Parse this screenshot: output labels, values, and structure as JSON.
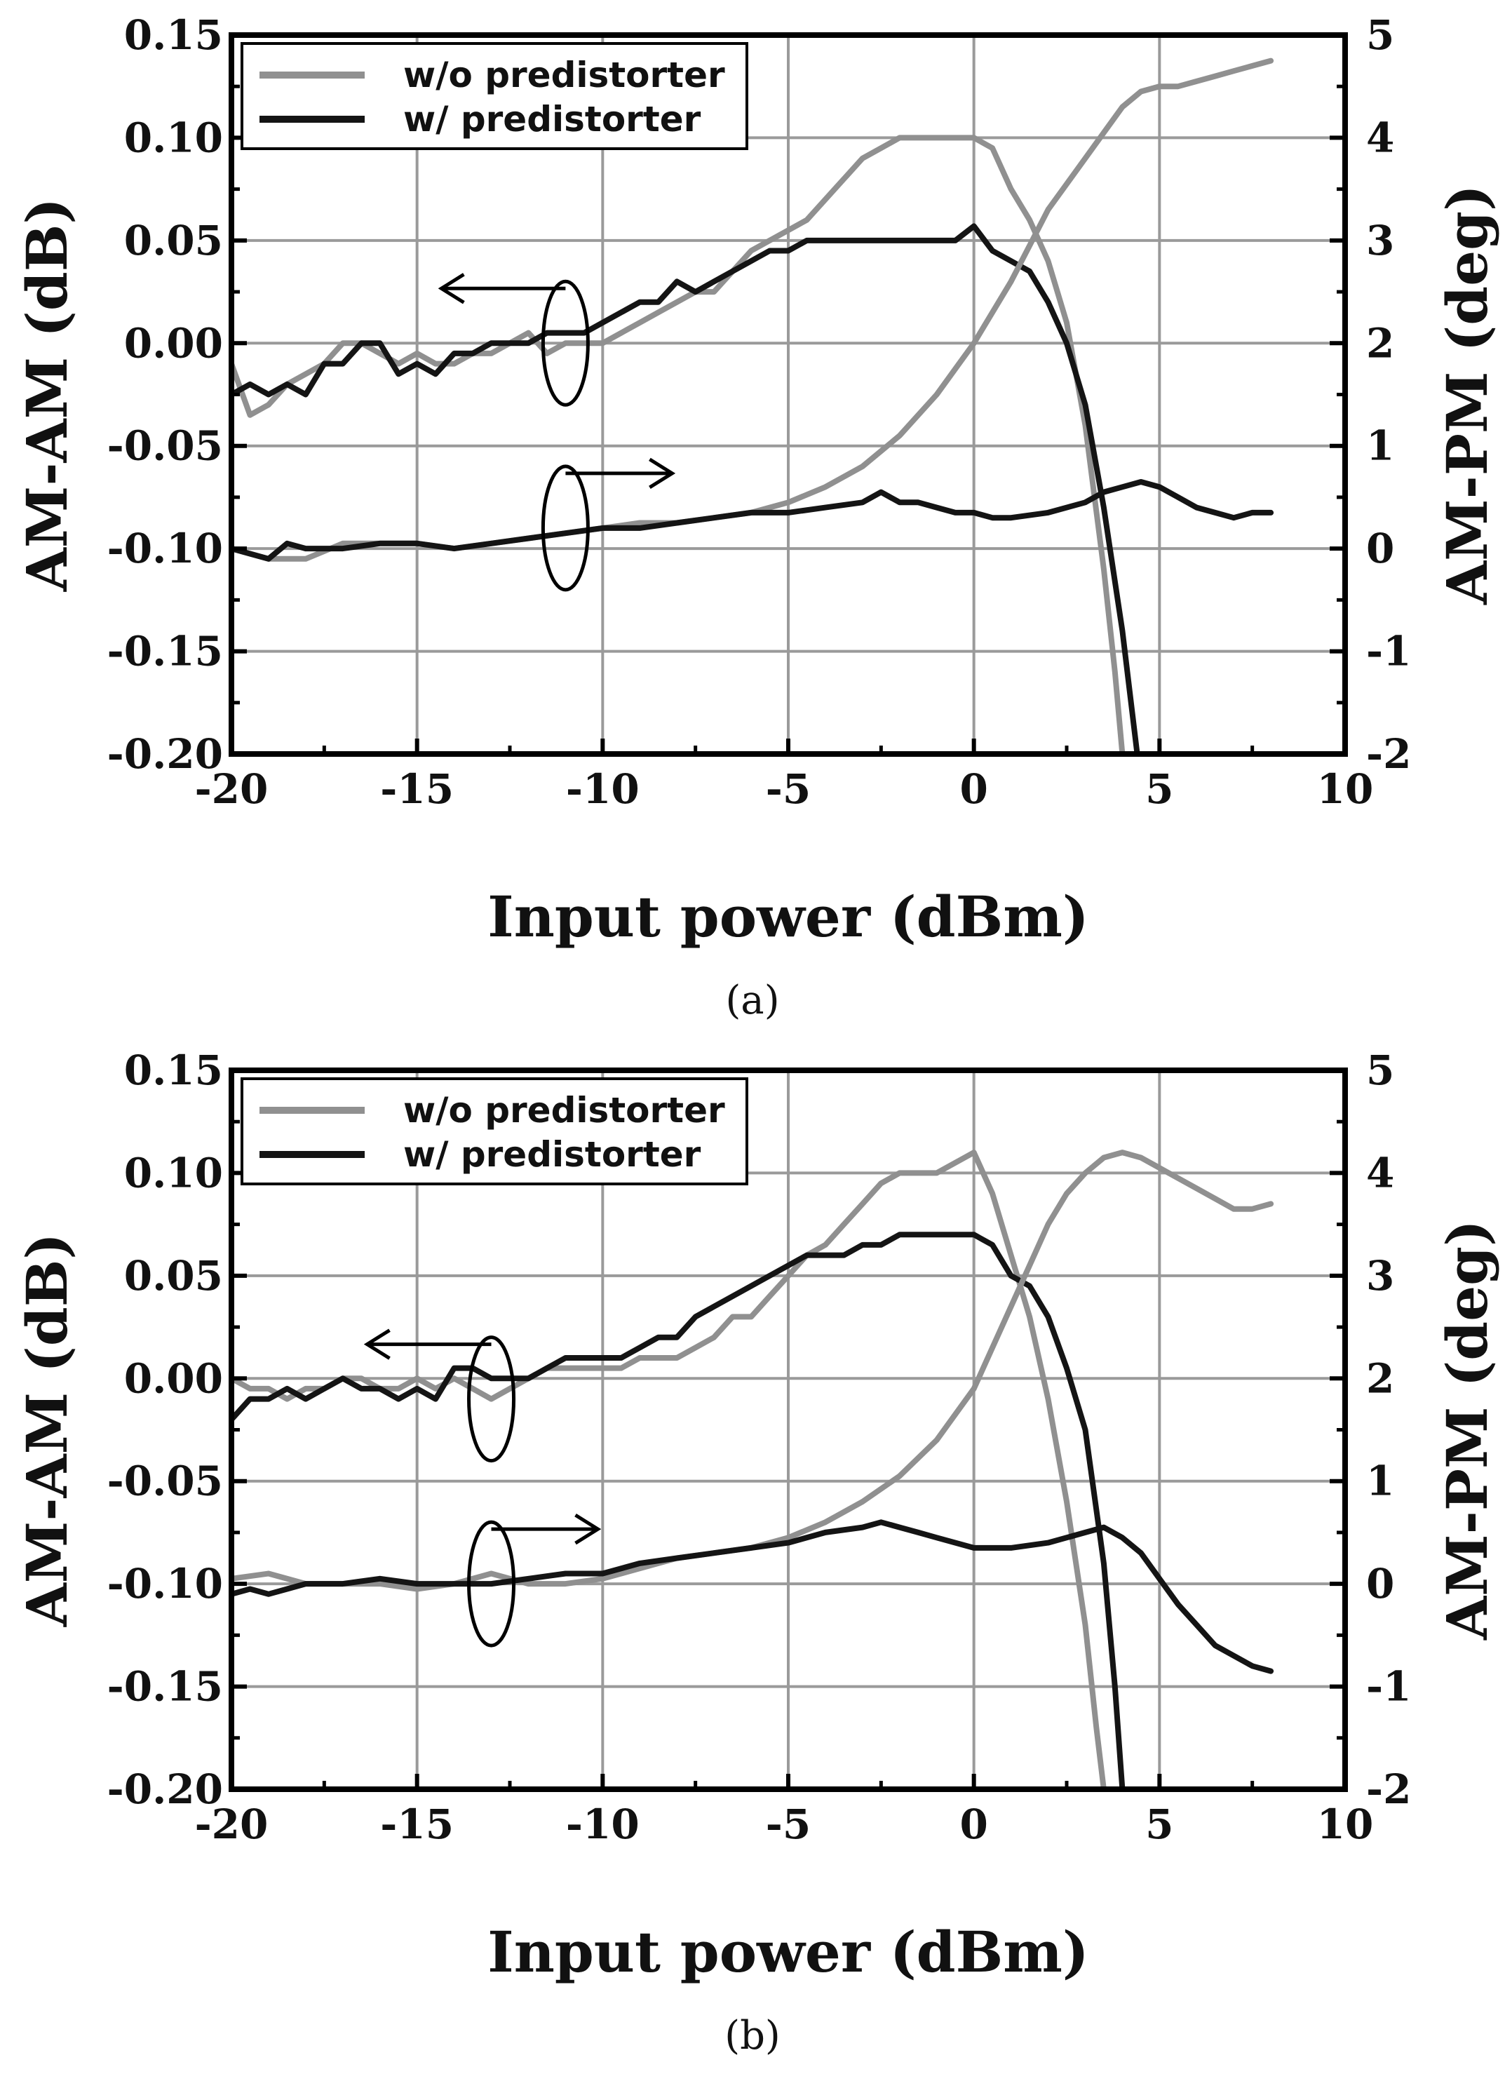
{
  "figure": {
    "captions": [
      "(a)",
      "(b)"
    ]
  },
  "colors": {
    "without": "#909090",
    "with": "#141414",
    "grid": "#9a9a9a",
    "axis": "#000000"
  },
  "chart_data": [
    {
      "type": "line",
      "panel_label": "(a)",
      "xlabel": "Input power (dBm)",
      "ylabel_left": "AM-AM (dB)",
      "ylabel_right": "AM-PM (deg)",
      "xlim": [
        -20,
        10
      ],
      "ylim_left": [
        -0.2,
        0.15
      ],
      "ylim_right": [
        -2,
        5
      ],
      "xticks": [
        -20,
        -15,
        -10,
        -5,
        0,
        5,
        10
      ],
      "xtick_labels": [
        "-20",
        "-15",
        "-10",
        "-5",
        "0",
        "5",
        "10"
      ],
      "yticks_left": [
        -0.2,
        -0.15,
        -0.1,
        -0.05,
        0.0,
        0.05,
        0.1,
        0.15
      ],
      "ytick_labels_left": [
        "-0.20",
        "-0.15",
        "-0.10",
        "-0.05",
        "0.00",
        "0.05",
        "0.10",
        "0.15"
      ],
      "yticks_right": [
        -2,
        -1,
        0,
        1,
        2,
        3,
        4,
        5
      ],
      "ytick_labels_right": [
        "-2",
        "-1",
        "0",
        "1",
        "2",
        "3",
        "4",
        "5"
      ],
      "grid": true,
      "legend": {
        "position": "top-left",
        "entries": [
          "w/o predistorter",
          "w/ predistorter"
        ]
      },
      "series": [
        {
          "name": "w/o predistorter",
          "quantity": "AM-AM",
          "axis": "left",
          "color": "#909090",
          "x": [
            -20,
            -19.5,
            -19,
            -18.5,
            -18,
            -17.5,
            -17,
            -16.5,
            -16,
            -15.5,
            -15,
            -14.5,
            -14,
            -13.5,
            -13,
            -12.5,
            -12,
            -11.5,
            -11,
            -10.5,
            -10,
            -9.5,
            -9,
            -8.5,
            -8,
            -7.5,
            -7,
            -6.5,
            -6,
            -5.5,
            -5,
            -4.5,
            -4,
            -3.5,
            -3,
            -2.5,
            -2,
            -1.5,
            -1,
            -0.5,
            0,
            0.5,
            1,
            1.5,
            2,
            2.5,
            3,
            3.5,
            3.8,
            4.0
          ],
          "y": [
            -0.01,
            -0.035,
            -0.03,
            -0.02,
            -0.015,
            -0.01,
            0.0,
            0.0,
            -0.005,
            -0.01,
            -0.005,
            -0.01,
            -0.01,
            -0.005,
            -0.005,
            0.0,
            0.005,
            -0.005,
            0.0,
            0.0,
            0.0,
            0.005,
            0.01,
            0.015,
            0.02,
            0.025,
            0.025,
            0.035,
            0.045,
            0.05,
            0.055,
            0.06,
            0.07,
            0.08,
            0.09,
            0.095,
            0.1,
            0.1,
            0.1,
            0.1,
            0.1,
            0.095,
            0.075,
            0.06,
            0.04,
            0.01,
            -0.04,
            -0.11,
            -0.16,
            -0.2
          ]
        },
        {
          "name": "w/ predistorter",
          "quantity": "AM-AM",
          "axis": "left",
          "color": "#141414",
          "x": [
            -20,
            -19.5,
            -19,
            -18.5,
            -18,
            -17.5,
            -17,
            -16.5,
            -16,
            -15.5,
            -15,
            -14.5,
            -14,
            -13.5,
            -13,
            -12.5,
            -12,
            -11.5,
            -11,
            -10.5,
            -10,
            -9.5,
            -9,
            -8.5,
            -8,
            -7.5,
            -7,
            -6.5,
            -6,
            -5.5,
            -5,
            -4.5,
            -4,
            -3.5,
            -3,
            -2.5,
            -2,
            -1.5,
            -1,
            -0.5,
            0,
            0.5,
            1,
            1.5,
            2,
            2.5,
            3,
            3.5,
            4.0,
            4.2,
            4.4
          ],
          "y": [
            -0.025,
            -0.02,
            -0.025,
            -0.02,
            -0.025,
            -0.01,
            -0.01,
            0.0,
            0.0,
            -0.015,
            -0.01,
            -0.015,
            -0.005,
            -0.005,
            0.0,
            0.0,
            0.0,
            0.005,
            0.005,
            0.005,
            0.01,
            0.015,
            0.02,
            0.02,
            0.03,
            0.025,
            0.03,
            0.035,
            0.04,
            0.045,
            0.045,
            0.05,
            0.05,
            0.05,
            0.05,
            0.05,
            0.05,
            0.05,
            0.05,
            0.05,
            0.057,
            0.045,
            0.04,
            0.035,
            0.02,
            0.0,
            -0.03,
            -0.08,
            -0.14,
            -0.17,
            -0.2
          ]
        },
        {
          "name": "w/o predistorter",
          "quantity": "AM-PM",
          "axis": "right",
          "color": "#909090",
          "x": [
            -20,
            -19,
            -18,
            -17,
            -16,
            -15,
            -14,
            -13,
            -12,
            -11,
            -10,
            -9,
            -8,
            -7,
            -6,
            -5,
            -4,
            -3,
            -2,
            -1,
            0,
            0.5,
            1,
            1.5,
            2,
            2.5,
            3,
            3.5,
            4,
            4.5,
            5,
            5.5,
            6,
            6.5,
            7,
            7.5,
            8
          ],
          "y": [
            0.0,
            -0.1,
            -0.1,
            0.05,
            0.05,
            0.05,
            0.0,
            0.05,
            0.1,
            0.15,
            0.2,
            0.25,
            0.25,
            0.3,
            0.35,
            0.45,
            0.6,
            0.8,
            1.1,
            1.5,
            2.0,
            2.3,
            2.6,
            2.95,
            3.3,
            3.55,
            3.8,
            4.05,
            4.3,
            4.45,
            4.5,
            4.5,
            4.55,
            4.6,
            4.65,
            4.7,
            4.75
          ]
        },
        {
          "name": "w/ predistorter",
          "quantity": "AM-PM",
          "axis": "right",
          "color": "#141414",
          "x": [
            -20,
            -19.5,
            -19,
            -18.5,
            -18,
            -17,
            -16,
            -15,
            -14,
            -13,
            -12,
            -11,
            -10,
            -9,
            -8,
            -7,
            -6,
            -5,
            -4,
            -3,
            -2.5,
            -2,
            -1.5,
            -1,
            -0.5,
            0,
            0.5,
            1,
            2,
            3,
            3.5,
            4,
            4.5,
            5,
            5.5,
            6,
            6.5,
            7,
            7.5,
            8
          ],
          "y": [
            0.0,
            -0.05,
            -0.1,
            0.05,
            0.0,
            0.0,
            0.05,
            0.05,
            0.0,
            0.05,
            0.1,
            0.15,
            0.2,
            0.2,
            0.25,
            0.3,
            0.35,
            0.35,
            0.4,
            0.45,
            0.55,
            0.45,
            0.45,
            0.4,
            0.35,
            0.35,
            0.3,
            0.3,
            0.35,
            0.45,
            0.55,
            0.6,
            0.65,
            0.6,
            0.5,
            0.4,
            0.35,
            0.3,
            0.35,
            0.35
          ]
        }
      ],
      "annotations": [
        {
          "type": "ellipse-arrow",
          "direction": "left",
          "axis": "left",
          "x": -11.0,
          "y": 0.0
        },
        {
          "type": "ellipse-arrow",
          "direction": "right",
          "axis": "right",
          "x": -11.0,
          "y": 0.2
        }
      ]
    },
    {
      "type": "line",
      "panel_label": "(b)",
      "xlabel": "Input power (dBm)",
      "ylabel_left": "AM-AM (dB)",
      "ylabel_right": "AM-PM (deg)",
      "xlim": [
        -20,
        10
      ],
      "ylim_left": [
        -0.2,
        0.15
      ],
      "ylim_right": [
        -2,
        5
      ],
      "xticks": [
        -20,
        -15,
        -10,
        -5,
        0,
        5,
        10
      ],
      "xtick_labels": [
        "-20",
        "-15",
        "-10",
        "-5",
        "0",
        "5",
        "10"
      ],
      "yticks_left": [
        -0.2,
        -0.15,
        -0.1,
        -0.05,
        0.0,
        0.05,
        0.1,
        0.15
      ],
      "ytick_labels_left": [
        "-0.20",
        "-0.15",
        "-0.10",
        "-0.05",
        "0.00",
        "0.05",
        "0.10",
        "0.15"
      ],
      "yticks_right": [
        -2,
        -1,
        0,
        1,
        2,
        3,
        4,
        5
      ],
      "ytick_labels_right": [
        "-2",
        "-1",
        "0",
        "1",
        "2",
        "3",
        "4",
        "5"
      ],
      "grid": true,
      "legend": {
        "position": "top-left",
        "entries": [
          "w/o predistorter",
          "w/ predistorter"
        ]
      },
      "series": [
        {
          "name": "w/o predistorter",
          "quantity": "AM-AM",
          "axis": "left",
          "color": "#909090",
          "x": [
            -20,
            -19.5,
            -19,
            -18.5,
            -18,
            -17.5,
            -17,
            -16.5,
            -16,
            -15.5,
            -15,
            -14.5,
            -14,
            -13.5,
            -13,
            -12.5,
            -12,
            -11.5,
            -11,
            -10.5,
            -10,
            -9.5,
            -9,
            -8.5,
            -8,
            -7.5,
            -7,
            -6.5,
            -6,
            -5.5,
            -5,
            -4.5,
            -4,
            -3.5,
            -3,
            -2.5,
            -2,
            -1.5,
            -1,
            -0.5,
            0,
            0.5,
            1,
            1.5,
            2,
            2.5,
            3,
            3.3,
            3.5
          ],
          "y": [
            0.0,
            -0.005,
            -0.005,
            -0.01,
            -0.005,
            -0.005,
            0.0,
            0.0,
            -0.005,
            -0.005,
            0.0,
            -0.005,
            0.0,
            -0.005,
            -0.01,
            -0.005,
            0.0,
            0.005,
            0.005,
            0.005,
            0.005,
            0.005,
            0.01,
            0.01,
            0.01,
            0.015,
            0.02,
            0.03,
            0.03,
            0.04,
            0.05,
            0.06,
            0.065,
            0.075,
            0.085,
            0.095,
            0.1,
            0.1,
            0.1,
            0.105,
            0.11,
            0.09,
            0.06,
            0.03,
            -0.01,
            -0.06,
            -0.12,
            -0.17,
            -0.2
          ]
        },
        {
          "name": "w/ predistorter",
          "quantity": "AM-AM",
          "axis": "left",
          "color": "#141414",
          "x": [
            -20,
            -19.5,
            -19,
            -18.5,
            -18,
            -17.5,
            -17,
            -16.5,
            -16,
            -15.5,
            -15,
            -14.5,
            -14,
            -13.5,
            -13,
            -12.5,
            -12,
            -11.5,
            -11,
            -10.5,
            -10,
            -9.5,
            -9,
            -8.5,
            -8,
            -7.5,
            -7,
            -6.5,
            -6,
            -5.5,
            -5,
            -4.5,
            -4,
            -3.5,
            -3,
            -2.5,
            -2,
            -1.5,
            -1,
            -0.5,
            0,
            0.5,
            1,
            1.5,
            2,
            2.5,
            3,
            3.5,
            3.8,
            4.0
          ],
          "y": [
            -0.02,
            -0.01,
            -0.01,
            -0.005,
            -0.01,
            -0.005,
            0.0,
            -0.005,
            -0.005,
            -0.01,
            -0.005,
            -0.01,
            0.005,
            0.005,
            0.0,
            0.0,
            0.0,
            0.005,
            0.01,
            0.01,
            0.01,
            0.01,
            0.015,
            0.02,
            0.02,
            0.03,
            0.035,
            0.04,
            0.045,
            0.05,
            0.055,
            0.06,
            0.06,
            0.06,
            0.065,
            0.065,
            0.07,
            0.07,
            0.07,
            0.07,
            0.07,
            0.065,
            0.05,
            0.045,
            0.03,
            0.005,
            -0.025,
            -0.09,
            -0.15,
            -0.2
          ]
        },
        {
          "name": "w/o predistorter",
          "quantity": "AM-PM",
          "axis": "right",
          "color": "#909090",
          "x": [
            -20,
            -19,
            -18,
            -17,
            -16,
            -15,
            -14,
            -13,
            -12,
            -11,
            -10,
            -9,
            -8,
            -7,
            -6,
            -5,
            -4,
            -3,
            -2,
            -1,
            0,
            0.5,
            1,
            1.5,
            2,
            2.5,
            3,
            3.5,
            4,
            4.5,
            5,
            5.5,
            6,
            6.5,
            7,
            7.5,
            8
          ],
          "y": [
            0.05,
            0.1,
            0.0,
            0.0,
            0.0,
            -0.05,
            0.0,
            0.1,
            0.0,
            0.0,
            0.05,
            0.15,
            0.25,
            0.3,
            0.35,
            0.45,
            0.6,
            0.8,
            1.05,
            1.4,
            1.9,
            2.3,
            2.7,
            3.1,
            3.5,
            3.8,
            4.0,
            4.15,
            4.2,
            4.15,
            4.05,
            3.95,
            3.85,
            3.75,
            3.65,
            3.65,
            3.7
          ]
        },
        {
          "name": "w/ predistorter",
          "quantity": "AM-PM",
          "axis": "right",
          "color": "#141414",
          "x": [
            -20,
            -19.5,
            -19,
            -18.5,
            -18,
            -17,
            -16,
            -15,
            -14,
            -13,
            -12,
            -11,
            -10,
            -9,
            -8,
            -7,
            -6,
            -5,
            -4,
            -3,
            -2.5,
            -2,
            -1.5,
            -1,
            0,
            1,
            2,
            3,
            3.5,
            4,
            4.5,
            5,
            5.5,
            6,
            6.5,
            7,
            7.5,
            8
          ],
          "y": [
            -0.1,
            -0.05,
            -0.1,
            -0.05,
            0.0,
            0.0,
            0.05,
            0.0,
            0.0,
            0.0,
            0.05,
            0.1,
            0.1,
            0.2,
            0.25,
            0.3,
            0.35,
            0.4,
            0.5,
            0.55,
            0.6,
            0.55,
            0.5,
            0.45,
            0.35,
            0.35,
            0.4,
            0.5,
            0.55,
            0.45,
            0.3,
            0.05,
            -0.2,
            -0.4,
            -0.6,
            -0.7,
            -0.8,
            -0.85
          ]
        }
      ],
      "annotations": [
        {
          "type": "ellipse-arrow",
          "direction": "left",
          "axis": "left",
          "x": -13.0,
          "y": -0.01
        },
        {
          "type": "ellipse-arrow",
          "direction": "right",
          "axis": "right",
          "x": -13.0,
          "y": 0.0
        }
      ]
    }
  ]
}
